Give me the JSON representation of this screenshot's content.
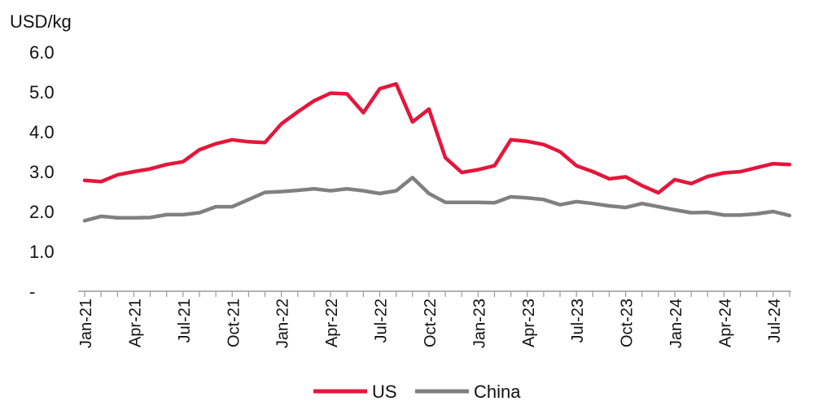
{
  "chart_data": {
    "type": "line",
    "ylabel": "USD/kg",
    "yticks": [
      {
        "value": 0,
        "label": "-"
      },
      {
        "value": 1,
        "label": "1.0"
      },
      {
        "value": 2,
        "label": "2.0"
      },
      {
        "value": 3,
        "label": "3.0"
      },
      {
        "value": 4,
        "label": "4.0"
      },
      {
        "value": 5,
        "label": "5.0"
      },
      {
        "value": 6,
        "label": "6.0"
      }
    ],
    "ylim": [
      0,
      6
    ],
    "x": [
      "Jan-21",
      "Feb-21",
      "Mar-21",
      "Apr-21",
      "May-21",
      "Jun-21",
      "Jul-21",
      "Aug-21",
      "Sep-21",
      "Oct-21",
      "Nov-21",
      "Dec-21",
      "Jan-22",
      "Feb-22",
      "Mar-22",
      "Apr-22",
      "May-22",
      "Jun-22",
      "Jul-22",
      "Aug-22",
      "Sep-22",
      "Oct-22",
      "Nov-22",
      "Dec-22",
      "Jan-23",
      "Feb-23",
      "Mar-23",
      "Apr-23",
      "May-23",
      "Jun-23",
      "Jul-23",
      "Aug-23",
      "Sep-23",
      "Oct-23",
      "Nov-23",
      "Dec-23",
      "Jan-24",
      "Feb-24",
      "Mar-24",
      "Apr-24",
      "May-24",
      "Jun-24",
      "Jul-24",
      "Aug-24"
    ],
    "xtick_labels": [
      "Jan-21",
      "Apr-21",
      "Jul-21",
      "Oct-21",
      "Jan-22",
      "Apr-22",
      "Jul-22",
      "Oct-22",
      "Jan-23",
      "Apr-23",
      "Jul-23",
      "Oct-23",
      "Jan-24",
      "Apr-24",
      "Jul-24"
    ],
    "series": [
      {
        "name": "US",
        "color": "#e4163a",
        "values": [
          2.78,
          2.75,
          2.92,
          3.0,
          3.07,
          3.18,
          3.25,
          3.55,
          3.7,
          3.8,
          3.75,
          3.73,
          4.2,
          4.5,
          4.78,
          4.97,
          4.95,
          4.48,
          5.08,
          5.2,
          4.25,
          4.57,
          3.35,
          2.98,
          3.05,
          3.15,
          3.8,
          3.76,
          3.68,
          3.5,
          3.15,
          3.0,
          2.82,
          2.87,
          2.65,
          2.47,
          2.8,
          2.7,
          2.88,
          2.97,
          3.0,
          3.1,
          3.2,
          3.18
        ]
      },
      {
        "name": "China",
        "color": "#808080",
        "values": [
          1.77,
          1.88,
          1.84,
          1.84,
          1.85,
          1.92,
          1.92,
          1.97,
          2.12,
          2.12,
          2.3,
          2.48,
          2.5,
          2.53,
          2.57,
          2.52,
          2.57,
          2.52,
          2.45,
          2.52,
          2.85,
          2.45,
          2.23,
          2.23,
          2.23,
          2.22,
          2.37,
          2.34,
          2.3,
          2.17,
          2.25,
          2.2,
          2.14,
          2.1,
          2.2,
          2.12,
          2.04,
          1.97,
          1.98,
          1.91,
          1.91,
          1.94,
          2.0,
          1.9
        ]
      }
    ],
    "legend": "bottom-center",
    "grid": false
  }
}
